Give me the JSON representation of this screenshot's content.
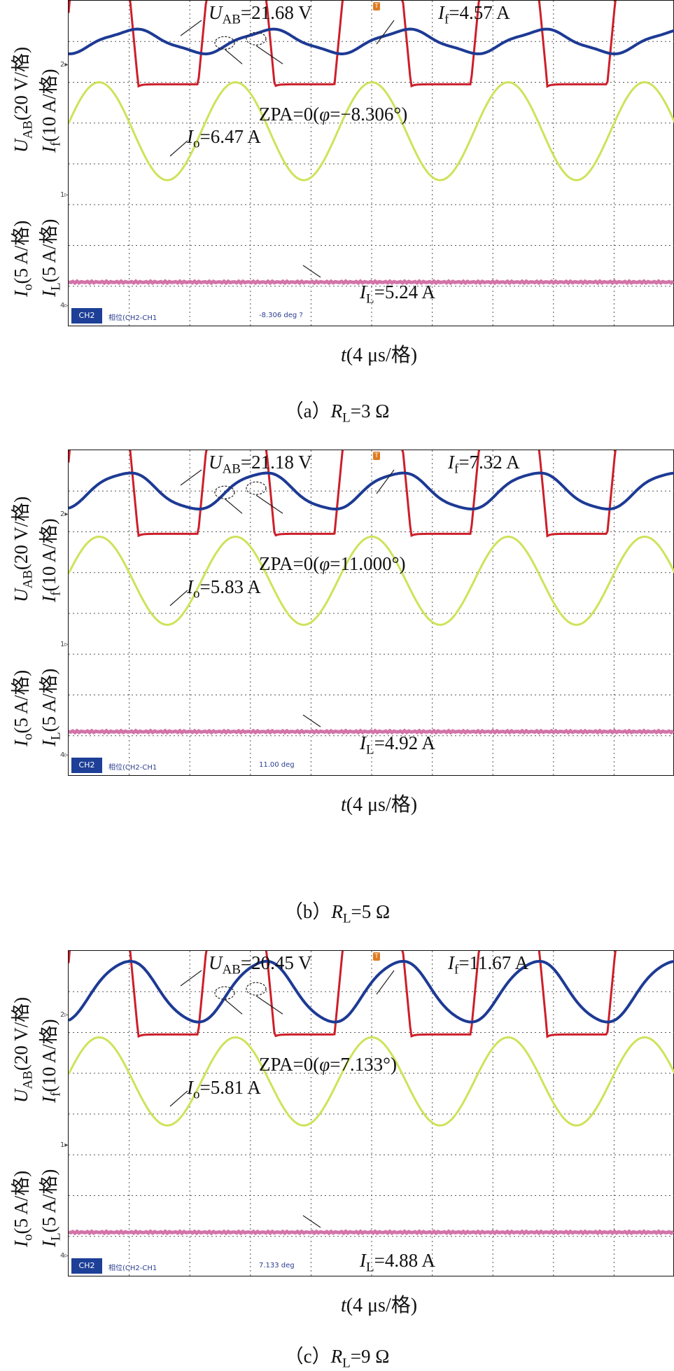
{
  "axis": {
    "time_label": "t(4 μs/格)",
    "upper_label_u": "U",
    "upper_label_u_sub": "AB",
    "upper_label_u_rest": "(20 V/格)",
    "upper_label_i": "I",
    "upper_label_i_sub": "f",
    "upper_label_i_rest": "(10 A/格)",
    "lower_label_o": "I",
    "lower_label_o_sub": "o",
    "lower_label_o_rest": "(5 A/格)",
    "lower_label_l": "I",
    "lower_label_l_sub": "L",
    "lower_label_l_rest": "(5 A/格)"
  },
  "colors": {
    "uab": "#cc1f2a",
    "if": "#1d3a94",
    "io": "#cfe25a",
    "il": "#d274a8",
    "grid": "#555555"
  },
  "chart_data": [
    {
      "type": "line",
      "caption_prefix": "（a）",
      "caption_var": "R",
      "caption_sub": "L",
      "caption_value": "=3 Ω",
      "uab_value": "=21.68 V",
      "if_value": "=4.57 A",
      "io_value": "=6.47 A",
      "il_value": "=5.24 A",
      "zpa_prefix": "ZPA=0(",
      "zpa_phi": "φ",
      "zpa_value": "=−8.306°)",
      "phase_label": "相位(CH2-CH1",
      "phase_value": "-8.306 deg ?",
      "channel_box": "CH2",
      "period_div": 2.25,
      "if_amp_div": 0.28,
      "if_phase_deg": -8.306,
      "io_amp_div": 1.2,
      "il_level_div": -2.9
    },
    {
      "type": "line",
      "caption_prefix": "（b）",
      "caption_var": "R",
      "caption_sub": "L",
      "caption_value": "=5 Ω",
      "uab_value": "=21.18 V",
      "if_value": "=7.32 A",
      "io_value": "=5.83 A",
      "il_value": "=4.92 A",
      "zpa_prefix": "ZPA=0(",
      "zpa_phi": "φ",
      "zpa_value": "=11.000°)",
      "phase_label": "相位(CH2-CH1",
      "phase_value": "11.00 deg",
      "channel_box": "CH2",
      "period_div": 2.25,
      "if_amp_div": 0.45,
      "if_phase_deg": 11.0,
      "io_amp_div": 1.08,
      "il_level_div": -2.9
    },
    {
      "type": "line",
      "caption_prefix": "（c）",
      "caption_var": "R",
      "caption_sub": "L",
      "caption_value": "=9 Ω",
      "uab_value": "=20.45 V",
      "if_value": "=11.67 A",
      "io_value": "=5.81 A",
      "il_value": "=4.88 A",
      "zpa_prefix": "ZPA=0(",
      "zpa_phi": "φ",
      "zpa_value": "=7.133°)",
      "phase_label": "相位(CH2-CH1",
      "phase_value": "7.133 deg",
      "channel_box": "CH2",
      "period_div": 2.25,
      "if_amp_div": 0.75,
      "if_phase_deg": 7.133,
      "io_amp_div": 1.08,
      "il_level_div": -2.9
    }
  ]
}
